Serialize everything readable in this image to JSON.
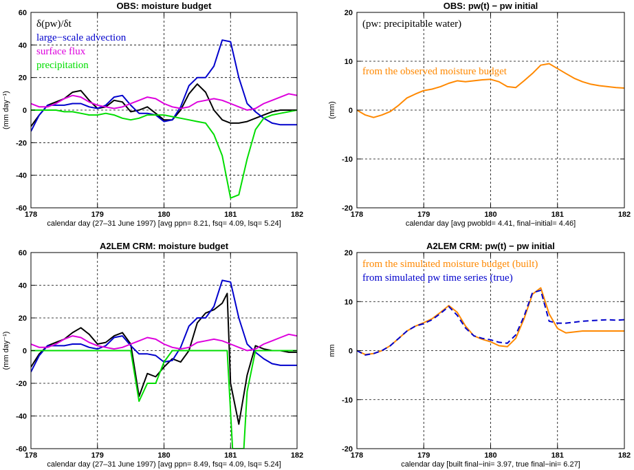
{
  "chart_data": [
    {
      "type": "line",
      "title": "OBS: moisture budget",
      "xlabel": "calendar day (27–31 June 1997)  [avg ppn=  8.21, fsq=  4.09, lsq=  5.24]",
      "ylabel": "(mm day⁻¹)",
      "xlim": [
        178,
        182
      ],
      "ylim": [
        -60,
        60
      ],
      "xticks": [
        178,
        179,
        180,
        181,
        182
      ],
      "yticks": [
        -60,
        -40,
        -20,
        0,
        20,
        40,
        60
      ],
      "grid": true,
      "legend": "top-left",
      "series": [
        {
          "name": "δ(pw)/δt",
          "color": "#000000",
          "x": [
            178.0,
            178.125,
            178.25,
            178.375,
            178.5,
            178.625,
            178.75,
            178.875,
            179.0,
            179.125,
            179.25,
            179.375,
            179.5,
            179.625,
            179.75,
            179.875,
            180.0,
            180.125,
            180.25,
            180.375,
            180.5,
            180.625,
            180.75,
            180.875,
            181.0,
            181.125,
            181.25,
            181.375,
            181.5,
            181.625,
            181.75,
            181.875,
            182.0
          ],
          "y": [
            -10,
            -3,
            3,
            5,
            7,
            11,
            12,
            6,
            1,
            2,
            6,
            5,
            -1,
            0,
            2,
            -2,
            -6,
            -6,
            0,
            10,
            16,
            11,
            0,
            -6,
            -8,
            -8,
            -7,
            -5,
            -3,
            -1,
            0,
            0,
            0
          ]
        },
        {
          "name": "large−scale advection",
          "color": "#0000cc",
          "x": [
            178.0,
            178.125,
            178.25,
            178.375,
            178.5,
            178.625,
            178.75,
            178.875,
            179.0,
            179.125,
            179.25,
            179.375,
            179.5,
            179.625,
            179.75,
            179.875,
            180.0,
            180.125,
            180.25,
            180.375,
            180.5,
            180.625,
            180.75,
            180.875,
            181.0,
            181.125,
            181.25,
            181.375,
            181.5,
            181.625,
            181.75,
            181.875,
            182.0
          ],
          "y": [
            -13,
            -3,
            3,
            3,
            3,
            4,
            4,
            2,
            1,
            3,
            8,
            9,
            3,
            -2,
            -2,
            -3,
            -7,
            -6,
            2,
            15,
            20,
            20,
            27,
            43,
            42,
            20,
            4,
            -1,
            -5,
            -8,
            -9,
            -9,
            -9
          ]
        },
        {
          "name": "surface flux",
          "color": "#dd00dd",
          "x": [
            178.0,
            178.125,
            178.25,
            178.375,
            178.5,
            178.625,
            178.75,
            178.875,
            179.0,
            179.125,
            179.25,
            179.375,
            179.5,
            179.625,
            179.75,
            179.875,
            180.0,
            180.125,
            180.25,
            180.375,
            180.5,
            180.625,
            180.75,
            180.875,
            181.0,
            181.125,
            181.25,
            181.375,
            181.5,
            181.625,
            181.75,
            181.875,
            182.0
          ],
          "y": [
            4,
            2,
            2,
            4,
            7,
            9,
            8,
            5,
            3,
            2,
            1,
            2,
            4,
            6,
            8,
            7,
            4,
            2,
            1,
            2,
            5,
            6,
            7,
            6,
            4,
            2,
            0,
            1,
            4,
            6,
            8,
            10,
            9
          ]
        },
        {
          "name": "precipitation",
          "color": "#00dd00",
          "x": [
            178.0,
            178.125,
            178.25,
            178.375,
            178.5,
            178.625,
            178.75,
            178.875,
            179.0,
            179.125,
            179.25,
            179.375,
            179.5,
            179.625,
            179.75,
            179.875,
            180.0,
            180.125,
            180.25,
            180.375,
            180.5,
            180.625,
            180.75,
            180.875,
            181.0,
            181.125,
            181.25,
            181.375,
            181.5,
            181.625,
            181.75,
            181.875,
            182.0
          ],
          "y": [
            0,
            0,
            0,
            0,
            -1,
            -1,
            -2,
            -3,
            -3,
            -2,
            -3,
            -5,
            -6,
            -5,
            -3,
            -3,
            -3,
            -4,
            -5,
            -6,
            -7,
            -8,
            -15,
            -28,
            -54,
            -52,
            -30,
            -12,
            -5,
            -3,
            -2,
            -1,
            0
          ]
        }
      ]
    },
    {
      "type": "line",
      "title": "OBS: pw(t) − pw initial",
      "xlabel": "calendar day [avg pwobld=  4.41, final−initial=  4.46]",
      "ylabel": "(mm)",
      "xlim": [
        178,
        182
      ],
      "ylim": [
        -20,
        20
      ],
      "xticks": [
        178,
        179,
        180,
        181,
        182
      ],
      "yticks": [
        -20,
        -10,
        0,
        10,
        20
      ],
      "grid": true,
      "annotations": [
        "(pw: precipitable water)"
      ],
      "series": [
        {
          "name": "from the observed moisture budget",
          "color": "#ff8800",
          "x": [
            178.0,
            178.125,
            178.25,
            178.375,
            178.5,
            178.625,
            178.75,
            178.875,
            179.0,
            179.125,
            179.25,
            179.375,
            179.5,
            179.625,
            179.75,
            179.875,
            180.0,
            180.125,
            180.25,
            180.375,
            180.5,
            180.625,
            180.75,
            180.875,
            181.0,
            181.125,
            181.25,
            181.375,
            181.5,
            181.625,
            181.75,
            181.875,
            182.0
          ],
          "y": [
            0,
            -1,
            -1.5,
            -1,
            -0.3,
            1,
            2.5,
            3.3,
            4,
            4.3,
            4.8,
            5.5,
            6,
            5.8,
            6,
            6.2,
            6.3,
            5.8,
            4.8,
            4.6,
            6,
            7.5,
            9.2,
            9.5,
            8.5,
            7.5,
            6.5,
            5.8,
            5.3,
            5,
            4.8,
            4.6,
            4.5
          ]
        }
      ]
    },
    {
      "type": "line",
      "title": "A2LEM CRM: moisture budget",
      "xlabel": "calendar day (27–31 June 1997)  [avg ppn=  8.49, fsq=  4.09, lsq=  5.24]",
      "ylabel": "(mm day⁻¹)",
      "xlim": [
        178,
        182
      ],
      "ylim": [
        -60,
        60
      ],
      "xticks": [
        178,
        179,
        180,
        181,
        182
      ],
      "yticks": [
        -60,
        -40,
        -20,
        0,
        20,
        40,
        60
      ],
      "grid": true,
      "series": [
        {
          "name": "δ(pw)/δt",
          "color": "#000000",
          "x": [
            178.0,
            178.125,
            178.25,
            178.375,
            178.5,
            178.625,
            178.75,
            178.875,
            179.0,
            179.125,
            179.25,
            179.375,
            179.5,
            179.625,
            179.75,
            179.875,
            180.0,
            180.125,
            180.25,
            180.375,
            180.5,
            180.625,
            180.75,
            180.875,
            180.95,
            181.0,
            181.125,
            181.25,
            181.375,
            181.5,
            181.625,
            181.75,
            181.875,
            182.0
          ],
          "y": [
            -10,
            -2,
            3,
            5,
            7,
            11,
            14,
            10,
            4,
            5,
            9,
            11,
            4,
            -28,
            -14,
            -16,
            -10,
            -5,
            -7,
            0,
            17,
            23,
            25,
            29,
            35,
            -20,
            -45,
            -15,
            3,
            1,
            0,
            0,
            -1,
            -1
          ]
        },
        {
          "name": "large−scale advection",
          "color": "#0000cc",
          "x": [
            178.0,
            178.125,
            178.25,
            178.375,
            178.5,
            178.625,
            178.75,
            178.875,
            179.0,
            179.125,
            179.25,
            179.375,
            179.5,
            179.625,
            179.75,
            179.875,
            180.0,
            180.125,
            180.25,
            180.375,
            180.5,
            180.625,
            180.75,
            180.875,
            181.0,
            181.125,
            181.25,
            181.375,
            181.5,
            181.625,
            181.75,
            181.875,
            182.0
          ],
          "y": [
            -13,
            -3,
            3,
            3,
            3,
            4,
            4,
            2,
            1,
            3,
            8,
            9,
            3,
            -2,
            -2,
            -3,
            -7,
            -6,
            2,
            15,
            20,
            20,
            27,
            43,
            42,
            20,
            4,
            -1,
            -5,
            -8,
            -9,
            -9,
            -9
          ]
        },
        {
          "name": "surface flux",
          "color": "#dd00dd",
          "x": [
            178.0,
            178.125,
            178.25,
            178.375,
            178.5,
            178.625,
            178.75,
            178.875,
            179.0,
            179.125,
            179.25,
            179.375,
            179.5,
            179.625,
            179.75,
            179.875,
            180.0,
            180.125,
            180.25,
            180.375,
            180.5,
            180.625,
            180.75,
            180.875,
            181.0,
            181.125,
            181.25,
            181.375,
            181.5,
            181.625,
            181.75,
            181.875,
            182.0
          ],
          "y": [
            4,
            2,
            2,
            4,
            7,
            9,
            8,
            5,
            3,
            2,
            1,
            2,
            4,
            6,
            8,
            7,
            4,
            2,
            1,
            2,
            5,
            6,
            7,
            6,
            4,
            2,
            0,
            1,
            4,
            6,
            8,
            10,
            9
          ]
        },
        {
          "name": "precipitation",
          "color": "#00dd00",
          "x": [
            178.0,
            178.125,
            178.25,
            178.375,
            178.5,
            178.625,
            178.75,
            178.875,
            179.0,
            179.125,
            179.25,
            179.375,
            179.5,
            179.625,
            179.75,
            179.875,
            180.0,
            180.125,
            180.25,
            180.375,
            180.5,
            180.625,
            180.75,
            180.875,
            180.95,
            181.03,
            181.125,
            181.2,
            181.25,
            181.375,
            181.5,
            181.625,
            181.75,
            181.875,
            182.0
          ],
          "y": [
            0,
            0,
            0,
            0,
            0,
            0,
            0,
            0,
            0,
            0,
            0,
            0,
            0,
            -31,
            -20,
            -20,
            -7,
            0,
            0,
            0,
            0,
            0,
            0,
            0,
            0,
            -60,
            -60,
            -60,
            -25,
            0,
            0,
            0,
            0,
            0,
            0
          ]
        }
      ]
    },
    {
      "type": "line",
      "title": "A2LEM CRM: pw(t) − pw initial",
      "xlabel": "calendar day  [built final−ini=  3.97, true final−ini=  6.27]",
      "ylabel": "mm",
      "xlim": [
        178,
        182
      ],
      "ylim": [
        -20,
        20
      ],
      "xticks": [
        178,
        179,
        180,
        181,
        182
      ],
      "yticks": [
        -20,
        -10,
        0,
        10,
        20
      ],
      "grid": true,
      "legend": "top-left",
      "series": [
        {
          "name": "from the simulated moisture budget (built)",
          "color": "#ff8800",
          "x": [
            178.0,
            178.125,
            178.25,
            178.375,
            178.5,
            178.625,
            178.75,
            178.875,
            179.0,
            179.125,
            179.25,
            179.375,
            179.5,
            179.625,
            179.75,
            179.875,
            180.0,
            180.125,
            180.25,
            180.375,
            180.5,
            180.625,
            180.75,
            180.875,
            181.0,
            181.125,
            181.25,
            181.375,
            181.5,
            181.625,
            181.75,
            181.875,
            182.0
          ],
          "y": [
            0,
            -0.8,
            -0.6,
            0,
            1,
            2.5,
            4,
            5,
            5.7,
            6.5,
            7.8,
            9.2,
            7.8,
            5,
            3,
            2.3,
            1.8,
            1,
            0.8,
            2.5,
            6.5,
            11.5,
            12.8,
            7.5,
            4.5,
            3.6,
            3.8,
            4,
            4,
            4,
            4,
            4,
            4
          ]
        },
        {
          "name": "from simulated pw time series (true)",
          "color": "#0000cc",
          "dash": true,
          "x": [
            178.0,
            178.125,
            178.25,
            178.375,
            178.5,
            178.625,
            178.75,
            178.875,
            179.0,
            179.125,
            179.25,
            179.375,
            179.5,
            179.625,
            179.75,
            179.875,
            180.0,
            180.125,
            180.25,
            180.375,
            180.5,
            180.625,
            180.75,
            180.875,
            181.0,
            181.125,
            181.25,
            181.375,
            181.5,
            181.625,
            181.75,
            181.875,
            182.0
          ],
          "y": [
            0,
            -0.9,
            -0.6,
            0,
            1,
            2.5,
            4,
            5,
            5.5,
            6.3,
            7.6,
            9,
            7.2,
            4.6,
            3,
            2.5,
            2.2,
            1.7,
            1.5,
            3.2,
            7,
            11.8,
            12.3,
            6,
            5.6,
            5.6,
            5.8,
            6,
            6.1,
            6.2,
            6.3,
            6.2,
            6.3
          ]
        }
      ]
    }
  ]
}
